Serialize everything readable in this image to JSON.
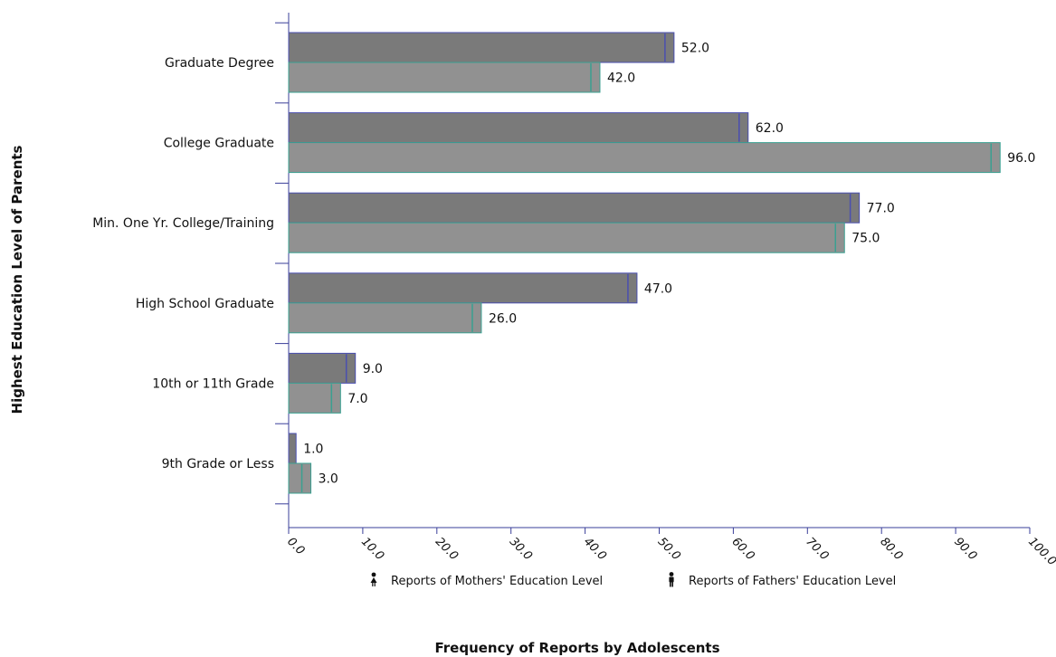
{
  "chart_data": {
    "type": "bar",
    "orientation": "horizontal",
    "categories": [
      "Graduate Degree",
      "College Graduate",
      "Min. One Yr. College/Training",
      "High School Graduate",
      "10th or 11th Grade",
      "9th Grade or Less"
    ],
    "series": [
      {
        "name": "Reports of Mothers' Education Level",
        "values": [
          52.0,
          62.0,
          77.0,
          47.0,
          9.0,
          1.0
        ],
        "color": "#7a7a7a",
        "edge_color": "#4a4fb0"
      },
      {
        "name": "Reports of Fathers' Education Level",
        "values": [
          42.0,
          96.0,
          75.0,
          26.0,
          7.0,
          3.0
        ],
        "color": "#919191",
        "edge_color": "#3aa091"
      }
    ],
    "xlabel": "Frequency of Reports by Adolescents",
    "ylabel": "Highest Education Level of Parents",
    "xlim": [
      0,
      100
    ],
    "xticks": [
      "0.0",
      "10.0",
      "20.0",
      "30.0",
      "40.0",
      "50.0",
      "60.0",
      "70.0",
      "80.0",
      "90.0",
      "100.0"
    ],
    "value_labels": [
      [
        "52.0",
        "42.0"
      ],
      [
        "62.0",
        "96.0"
      ],
      [
        "77.0",
        "75.0"
      ],
      [
        "47.0",
        "26.0"
      ],
      [
        "9.0",
        "7.0"
      ],
      [
        "1.0",
        "3.0"
      ]
    ],
    "grid": false,
    "legend_position": "bottom"
  }
}
